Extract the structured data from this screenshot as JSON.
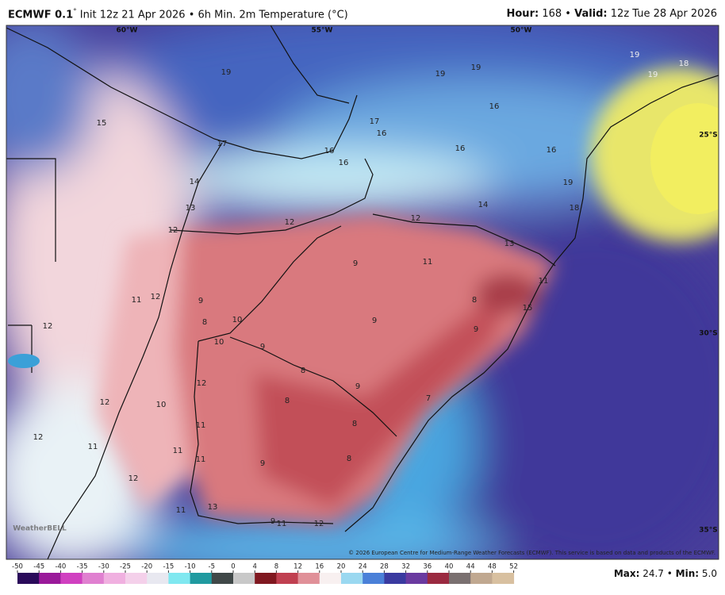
{
  "header": {
    "model": "ECMWF 0.1",
    "degree": "°",
    "title": "Init 12z 21 Apr 2026 • 6h Min. 2m Temperature (°C)",
    "hour_label": "Hour:",
    "hour": "168 •",
    "valid_label": "Valid:",
    "valid": "12z Tue 28 Apr 2026"
  },
  "map": {
    "lon_labels": [
      "60°W",
      "55°W",
      "50°W"
    ],
    "lat_labels": [
      "25°S",
      "30°S",
      "35°S"
    ],
    "point_values": [
      15,
      19,
      19,
      19,
      19,
      18,
      19,
      17,
      16,
      16,
      16,
      16,
      16,
      16,
      17,
      14,
      13,
      19,
      18,
      14,
      12,
      12,
      12,
      13,
      11,
      9,
      11,
      15,
      12,
      11,
      9,
      8,
      10,
      9,
      8,
      9,
      12,
      10,
      9,
      8,
      12,
      9,
      7,
      12,
      10,
      8,
      8,
      11,
      12,
      11,
      11,
      9,
      11,
      12,
      13,
      11,
      9,
      11,
      12,
      8
    ],
    "credit": "© 2026 European Centre for Medium-Range Weather Forecasts (ECMWF). This service is based on data and products of the ECMWF.",
    "logo": "WeatherBELL"
  },
  "colorbar": {
    "ticks": [
      -50,
      -45,
      -40,
      -35,
      -30,
      -25,
      -20,
      -15,
      -10,
      -5,
      0,
      4,
      8,
      12,
      16,
      20,
      24,
      28,
      32,
      36,
      40,
      44,
      48,
      52
    ]
  },
  "stats": {
    "max_label": "Max:",
    "max": "24.7",
    "sep": "•",
    "min_label": "Min:",
    "min": "5.0"
  }
}
